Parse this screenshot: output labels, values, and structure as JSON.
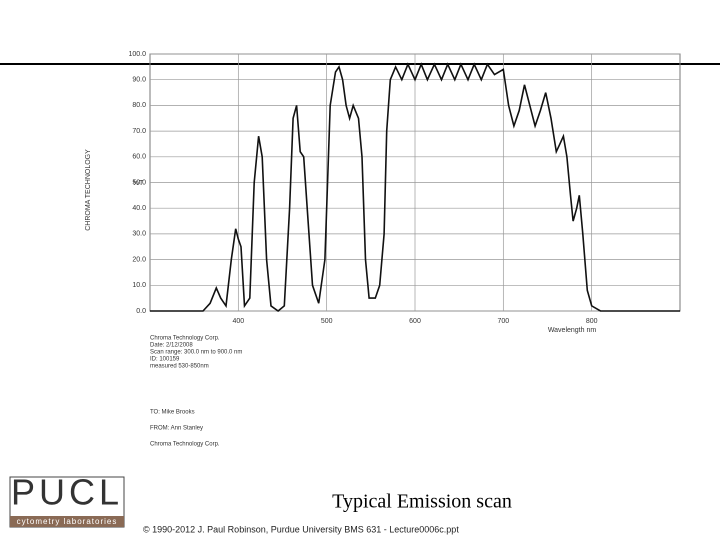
{
  "chart_data": {
    "type": "line",
    "title": "Typical Emission scan",
    "xlabel": "Wavelength nm",
    "ylabel": "%T",
    "x": [
      300,
      360,
      368,
      375,
      380,
      386,
      392,
      397,
      400,
      403,
      407,
      413,
      418,
      423,
      427,
      432,
      437,
      445,
      452,
      458,
      462,
      466,
      470,
      474,
      478,
      484,
      491,
      498,
      504,
      510,
      514,
      518,
      522,
      526,
      530,
      536,
      540,
      544,
      548,
      555,
      560,
      565,
      568,
      572,
      578,
      585,
      592,
      600,
      607,
      614,
      622,
      630,
      637,
      645,
      652,
      660,
      667,
      675,
      682,
      690,
      700,
      706,
      712,
      718,
      724,
      730,
      736,
      742,
      748,
      754,
      760,
      764,
      768,
      772,
      776,
      779,
      783,
      786,
      790,
      795,
      800,
      810,
      900
    ],
    "values": [
      0,
      0,
      3,
      9,
      5,
      2,
      20,
      32,
      28,
      25,
      2,
      5,
      50,
      68,
      60,
      20,
      2,
      0,
      2,
      40,
      75,
      80,
      62,
      60,
      40,
      10,
      3,
      20,
      80,
      93,
      95,
      90,
      80,
      75,
      80,
      75,
      60,
      20,
      5,
      5,
      10,
      30,
      70,
      90,
      95,
      90,
      96,
      90,
      96,
      90,
      96,
      90,
      96,
      90,
      96,
      90,
      96,
      90,
      96,
      92,
      94,
      80,
      72,
      78,
      88,
      80,
      72,
      78,
      85,
      75,
      62,
      65,
      68,
      60,
      45,
      35,
      40,
      45,
      30,
      8,
      2,
      0,
      0
    ],
    "color": "#111111",
    "xlim": [
      300,
      900
    ],
    "xticks": [
      400,
      500,
      600,
      700,
      800
    ],
    "ylim": [
      0,
      100
    ],
    "yticks": [
      {
        "value": 0,
        "label": "0.0"
      },
      {
        "value": 10,
        "label": "10.0"
      },
      {
        "value": 20,
        "label": "20.0"
      },
      {
        "value": 30,
        "label": "30.0"
      },
      {
        "value": 40,
        "label": "40.0"
      },
      {
        "value": 50,
        "label": "50.0"
      },
      {
        "value": 60,
        "label": "60.0"
      },
      {
        "value": 70,
        "label": "70.0"
      },
      {
        "value": 80,
        "label": "80.0"
      },
      {
        "value": 90,
        "label": "90.0"
      },
      {
        "value": 100,
        "label": "100.0"
      }
    ],
    "grid": true,
    "notes": [
      "Chroma Technology Corp.",
      "Date: 2/12/2008",
      "Scan range:  300.0 nm to 900.0 nm",
      "ID: 100159",
      "measured 530-850nm",
      "TO: Mike Brooks",
      "FROM: Ann Stanley",
      "Chroma Technology Corp."
    ]
  },
  "side_text": "CHROMA TECHNOLOGY",
  "logo": {
    "name": "PUCL",
    "subtitle": "cytometry laboratories"
  },
  "footer": "© 1990-2012 J. Paul Robinson, Purdue University BMS 631 - Lecture0006c.ppt"
}
